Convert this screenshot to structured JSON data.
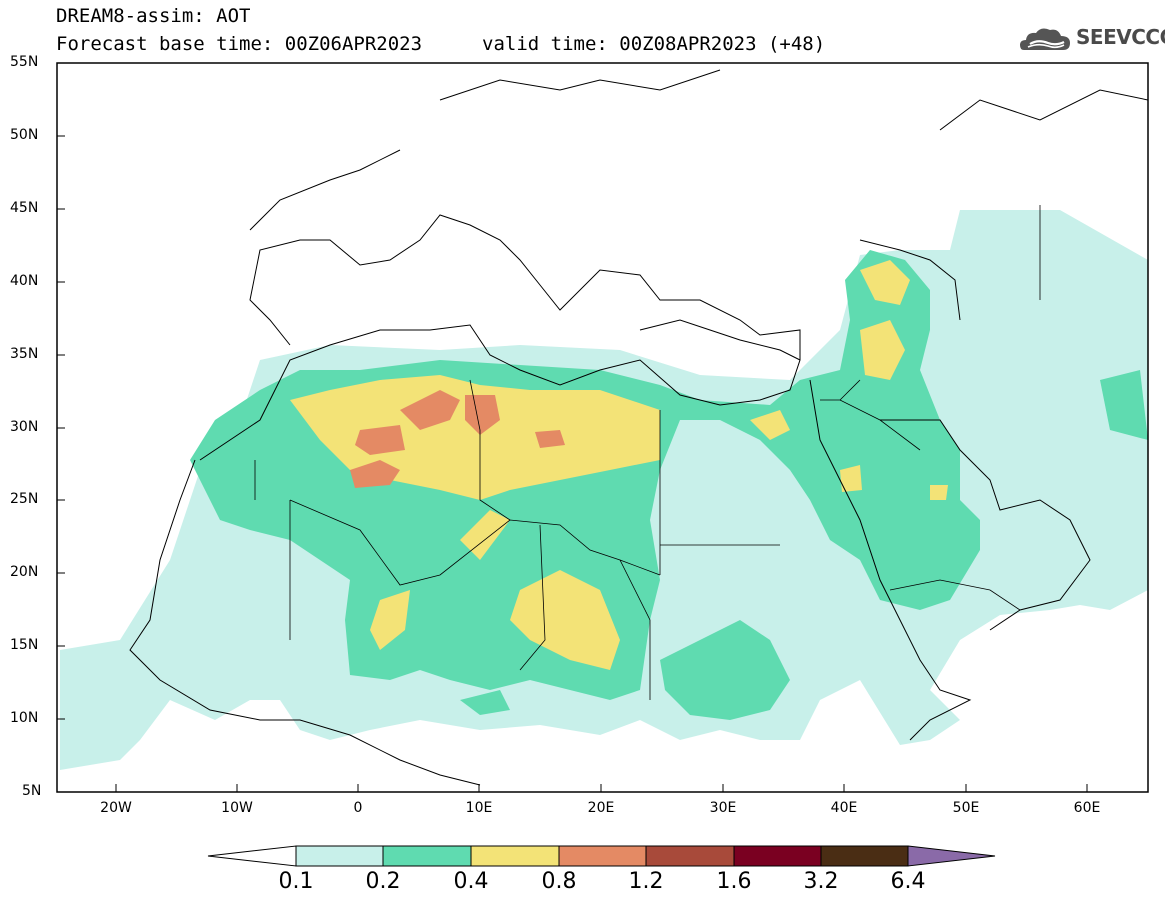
{
  "header": {
    "title_line1": "DREAM8-assim: AOT",
    "title_line2": "Forecast base time: 00Z06APR2023",
    "valid_time": "valid time: 00Z08APR2023 (+48)",
    "logo_text": "SEEVCCC",
    "logo_icon": "cloud-icon"
  },
  "axes": {
    "lat_labels": [
      "55N",
      "50N",
      "45N",
      "40N",
      "35N",
      "30N",
      "25N",
      "20N",
      "15N",
      "10N",
      "5N"
    ],
    "lon_labels": [
      "20W",
      "10W",
      "0",
      "10E",
      "20E",
      "30E",
      "40E",
      "50E",
      "60E"
    ]
  },
  "colorbar": {
    "labels": [
      "0.1",
      "0.2",
      "0.4",
      "0.8",
      "1.2",
      "1.6",
      "3.2",
      "6.4"
    ],
    "colors": [
      "#c8f0ea",
      "#5fdbb0",
      "#f3e377",
      "#e48a64",
      "#a84a3a",
      "#7a0021",
      "#4a2d14",
      "#8a6aa8"
    ]
  },
  "chart_data": {
    "type": "heatmap",
    "variable": "AOT",
    "projection": "lat-lon",
    "xlim": [
      -25,
      65
    ],
    "ylim": [
      5,
      55
    ],
    "levels": [
      0.1,
      0.2,
      0.4,
      0.8,
      1.2,
      1.6,
      3.2,
      6.4
    ]
  }
}
